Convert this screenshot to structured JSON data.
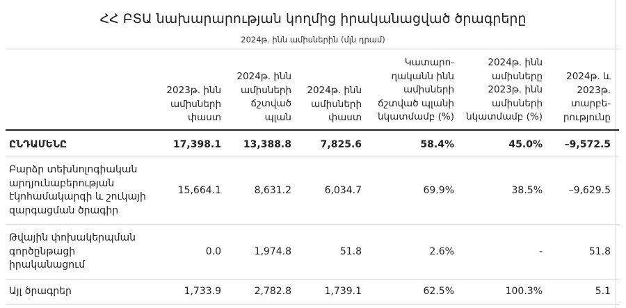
{
  "title": "ՀՀ ԲՏԱ նախարարության կողմից իրականացված ծրագրերը",
  "subtitle": "2024թ. ինն ամիսներին (մլն դրամ)",
  "columns": [
    "2023թ. ինն ամիսների փաստ",
    "2024թ. ինն ամիսների ճշտված պլան",
    "2024թ. ինն ամիսների փաստ",
    "Կատարո- ղականն ինն ամիսների ճշտված պլանի նկատմամբ (%)",
    "2024թ. ինն ամիսները 2023թ. ինն ամիսների նկատմամբ (%)",
    "2024թ. և 2023թ. տարբե- րությունը"
  ],
  "rows": [
    {
      "label": "ԸՆԴԱՄԵՆԸ",
      "values": [
        "17,398.1",
        "13,388.8",
        "7,825.6",
        "58.4%",
        "45.0%",
        "–9,572.5"
      ]
    },
    {
      "label": "Բարձր տեխնոլոգիական արդյունաբերության էկոհամակարգի և շուկայի զարգացման ծրագիր",
      "values": [
        "15,664.1",
        "8,631.2",
        "6,034.7",
        "69.9%",
        "38.5%",
        "–9,629.5"
      ]
    },
    {
      "label": "Թվային փոխակերպման գործընթացի իրականացում",
      "values": [
        "0.0",
        "1,974.8",
        "51.8",
        "2.6%",
        "-",
        "51.8"
      ]
    },
    {
      "label": "Այլ ծրագրեր",
      "values": [
        "1,733.9",
        "2,782.8",
        "1,739.1",
        "62.5%",
        "100.3%",
        "5.1"
      ]
    }
  ]
}
